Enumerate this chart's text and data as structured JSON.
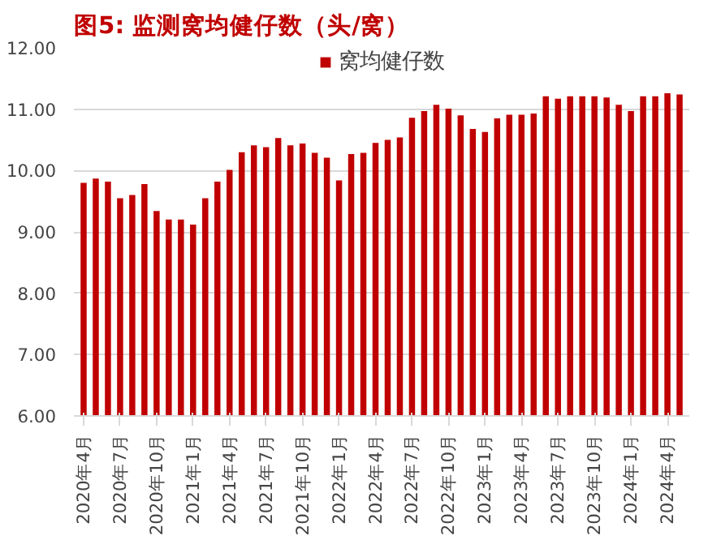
{
  "chart_data": {
    "type": "bar",
    "title": "图5:  监测窝均健仔数（头/窝）",
    "categories": [
      "2020年4月",
      null,
      null,
      "2020年7月",
      null,
      null,
      "2020年10月",
      null,
      null,
      "2021年1月",
      null,
      null,
      "2021年4月",
      null,
      null,
      "2021年7月",
      null,
      null,
      "2021年10月",
      null,
      null,
      "2022年1月",
      null,
      null,
      "2022年4月",
      null,
      null,
      "2022年7月",
      null,
      null,
      "2022年10月",
      null,
      null,
      "2023年1月",
      null,
      null,
      "2023年4月",
      null,
      null,
      "2023年7月",
      null,
      null,
      "2023年10月",
      null,
      null,
      "2024年1月",
      null,
      null,
      "2024年4月",
      null
    ],
    "series": [
      {
        "name": "窝均健仔数",
        "color": "#c00000",
        "values": [
          9.8,
          9.87,
          9.82,
          9.55,
          9.6,
          9.78,
          9.34,
          9.2,
          9.2,
          9.12,
          9.55,
          9.82,
          10.01,
          10.3,
          10.41,
          10.38,
          10.53,
          10.41,
          10.44,
          10.29,
          10.21,
          9.84,
          10.27,
          10.29,
          10.45,
          10.5,
          10.54,
          10.86,
          10.97,
          11.07,
          11.01,
          10.9,
          10.68,
          10.63,
          10.85,
          10.91,
          10.91,
          10.93,
          11.21,
          11.17,
          11.21,
          11.21,
          11.21,
          11.19,
          11.07,
          10.97,
          11.21,
          11.21,
          11.26,
          11.24
        ]
      }
    ],
    "ylim": [
      6,
      12
    ],
    "yticks": [
      {
        "value": 6,
        "label": "6.00"
      },
      {
        "value": 7,
        "label": "7.00"
      },
      {
        "value": 8,
        "label": "8.00"
      },
      {
        "value": 9,
        "label": "9.00"
      },
      {
        "value": 10,
        "label": "10.00"
      },
      {
        "value": 11,
        "label": "11.00"
      },
      {
        "value": 12,
        "label": "12.00"
      }
    ],
    "grid": "y",
    "legend": "top"
  }
}
